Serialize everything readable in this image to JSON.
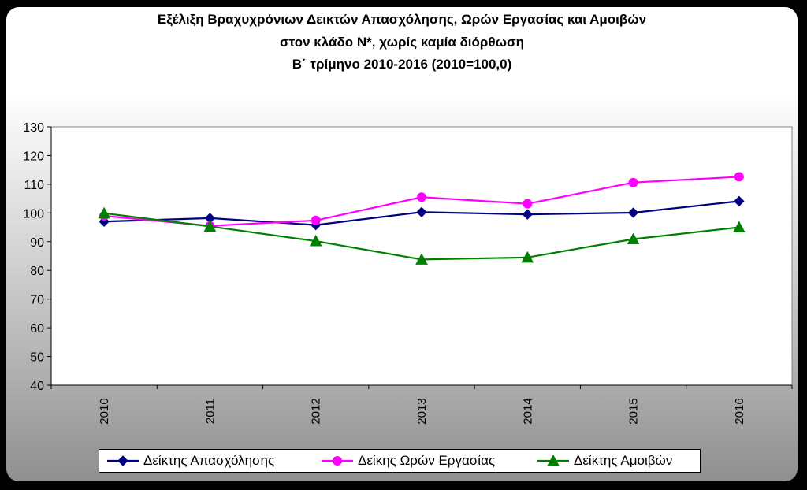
{
  "chart_data": {
    "type": "line",
    "title_lines": [
      "Εξέλιξη Βραχυχρόνιων Δεικτών Απασχόλησης, Ωρών Εργασίας και Αμοιβών",
      "στον κλάδο Ν*, χωρίς καμία διόρθωση",
      "Β΄ τρίμηνο 2010-2016 (2010=100,0)"
    ],
    "categories": [
      "2010",
      "2011",
      "2012",
      "2013",
      "2014",
      "2015",
      "2016"
    ],
    "ylim": [
      40,
      130
    ],
    "yticks": [
      40,
      50,
      60,
      70,
      80,
      90,
      100,
      110,
      120,
      130
    ],
    "grid": false,
    "legend_position": "bottom",
    "series": [
      {
        "name": "Δείκτης Απασχόλησης",
        "color": "#000080",
        "marker": "diamond",
        "values": [
          97.0,
          98.2,
          95.8,
          100.3,
          99.5,
          100.1,
          104.1
        ]
      },
      {
        "name": "Δείκης Ωρών Εργασίας",
        "color": "#ff00ff",
        "marker": "circle",
        "values": [
          99.0,
          95.5,
          97.4,
          105.5,
          103.2,
          110.6,
          112.6
        ]
      },
      {
        "name": "Δείκτης Αμοιβών",
        "color": "#008000",
        "marker": "triangle",
        "values": [
          99.9,
          95.3,
          90.2,
          83.8,
          84.5,
          90.9,
          95.0
        ]
      }
    ]
  }
}
